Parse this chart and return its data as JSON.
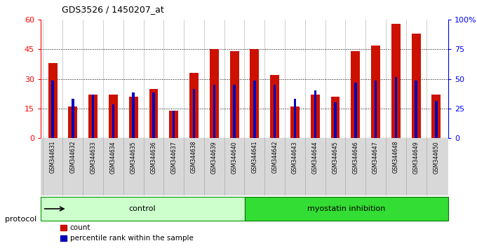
{
  "title": "GDS3526 / 1450207_at",
  "samples": [
    "GSM344631",
    "GSM344632",
    "GSM344633",
    "GSM344634",
    "GSM344635",
    "GSM344636",
    "GSM344637",
    "GSM344638",
    "GSM344639",
    "GSM344640",
    "GSM344641",
    "GSM344642",
    "GSM344643",
    "GSM344644",
    "GSM344645",
    "GSM344646",
    "GSM344647",
    "GSM344648",
    "GSM344649",
    "GSM344650"
  ],
  "counts": [
    38,
    16,
    22,
    22,
    21,
    25,
    14,
    33,
    45,
    44,
    45,
    32,
    16,
    22,
    21,
    44,
    47,
    58,
    53,
    22
  ],
  "percentile_rank": [
    29,
    20,
    22,
    17,
    23,
    23,
    14,
    25,
    27,
    27,
    29,
    27,
    20,
    24,
    18,
    28,
    29,
    31,
    29,
    19
  ],
  "groups": [
    {
      "name": "control",
      "start": 0,
      "end": 9,
      "color": "#ccffcc",
      "edge": "#009900"
    },
    {
      "name": "myostatin inhibition",
      "start": 10,
      "end": 19,
      "color": "#33dd33",
      "edge": "#007700"
    }
  ],
  "left_ylim": [
    0,
    60
  ],
  "left_yticks": [
    0,
    15,
    30,
    45,
    60
  ],
  "right_yticklabels": [
    "0",
    "25",
    "50",
    "75",
    "100%"
  ],
  "bar_color": "#cc1100",
  "percentile_color": "#0000bb",
  "bar_width": 0.45,
  "blue_bar_width": 0.12,
  "bg_color": "#e8e8e8",
  "xtick_bg": "#d8d8d8",
  "protocol_label": "protocol",
  "legend_count": "count",
  "legend_percentile": "percentile rank within the sample"
}
